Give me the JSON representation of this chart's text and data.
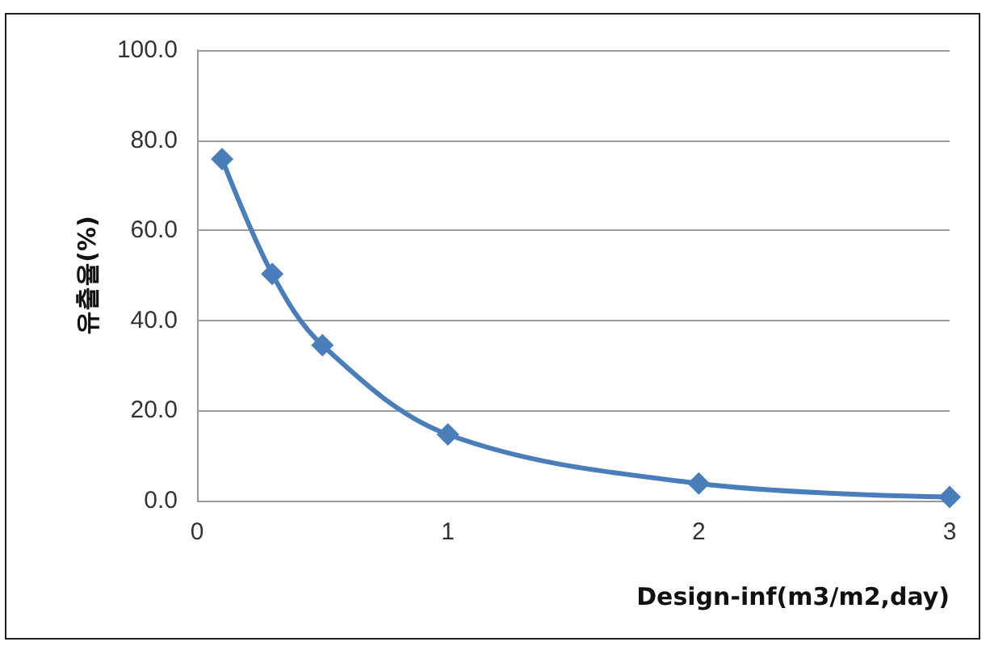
{
  "chart_data": {
    "type": "line",
    "xlabel": "Design-inf(m3/m2,day)",
    "ylabel": "유출율(%)",
    "x": [
      0.1,
      0.3,
      0.5,
      1,
      2,
      3
    ],
    "series": [
      {
        "color": "#4a7ebb",
        "values": [
          75.8,
          50.3,
          34.5,
          14.7,
          3.8,
          0.8
        ]
      }
    ],
    "xlim": [
      0,
      3
    ],
    "xticks": [
      0,
      1,
      2,
      3
    ],
    "ylim": [
      0,
      100
    ],
    "yticks": [
      {
        "value": 0,
        "label": "0.0"
      },
      {
        "value": 20,
        "label": "20.0"
      },
      {
        "value": 40,
        "label": "40.0"
      },
      {
        "value": 60,
        "label": "60.0"
      },
      {
        "value": 80,
        "label": "80.0"
      },
      {
        "value": 100,
        "label": "100.0"
      }
    ],
    "grid": "y",
    "marker": "diamond",
    "line_style": "solid"
  }
}
